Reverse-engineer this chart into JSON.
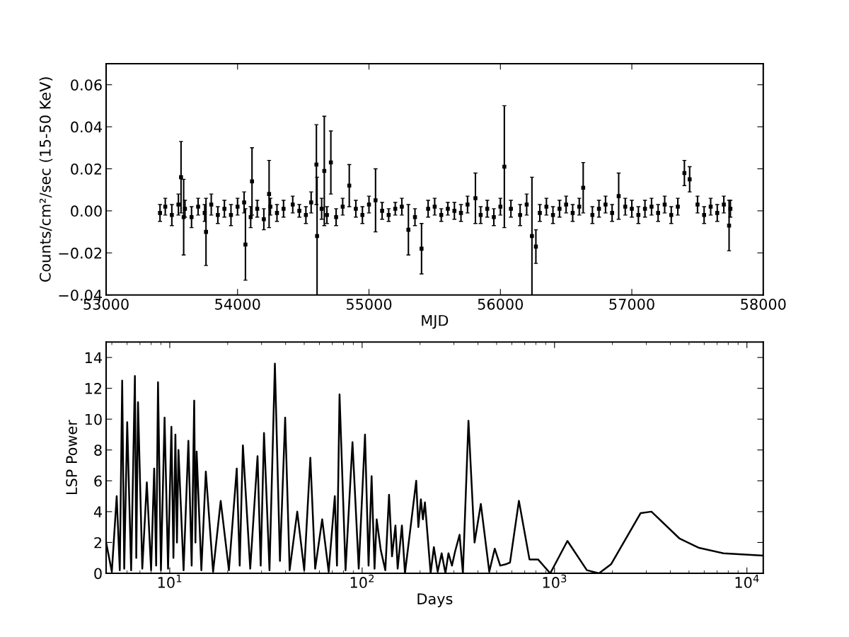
{
  "chart_data": [
    {
      "type": "scatter",
      "xlabel": "MJD",
      "ylabel": "Counts/cm²/sec (15-50 KeV)",
      "color": "#000000",
      "marker": "square",
      "xlim": [
        53000,
        58000
      ],
      "xticks": [
        53000,
        54000,
        55000,
        56000,
        57000,
        58000
      ],
      "ylim": [
        -0.04,
        0.07
      ],
      "yticks": [
        {
          "value": -0.04,
          "label": "−0.04"
        },
        {
          "value": -0.02,
          "label": "−0.02"
        },
        {
          "value": 0,
          "label": "0.00"
        },
        {
          "value": 0.02,
          "label": "0.02"
        },
        {
          "value": 0.04,
          "label": "0.04"
        },
        {
          "value": 0.06,
          "label": "0.06"
        }
      ],
      "x": [
        53410,
        53450,
        53500,
        53550,
        53600,
        53650,
        53700,
        53750,
        53800,
        53850,
        53900,
        53950,
        54000,
        54050,
        54100,
        54150,
        54200,
        54250,
        54300,
        54350,
        54420,
        54470,
        54520,
        54560,
        54640,
        54680,
        54750,
        54800,
        54900,
        54950,
        55000,
        55100,
        55150,
        55200,
        55250,
        55350,
        55450,
        55500,
        55550,
        55600,
        55650,
        55700,
        55750,
        55850,
        55900,
        55950,
        56000,
        56080,
        56150,
        56200,
        56300,
        56350,
        56400,
        56450,
        56500,
        56550,
        56600,
        56700,
        56750,
        56800,
        56850,
        56950,
        57000,
        57050,
        57100,
        57150,
        57200,
        57250,
        57300,
        57350,
        57500,
        57550,
        57600,
        57650,
        57700,
        57750,
        53570,
        53590,
        53760,
        54060,
        54110,
        54240,
        54600,
        54605,
        54660,
        54710,
        54850,
        55050,
        55300,
        55400,
        55810,
        56030,
        56240,
        56270,
        56630,
        56900,
        57400,
        57440,
        57740
      ],
      "values": [
        -0.001,
        0.002,
        -0.002,
        0.003,
        0.001,
        -0.003,
        0.002,
        -0.001,
        0.003,
        -0.002,
        0.001,
        -0.002,
        0.002,
        0.004,
        -0.003,
        0.001,
        -0.004,
        0.002,
        -0.001,
        0.001,
        0.003,
        0,
        -0.002,
        0.004,
        0.001,
        -0.002,
        -0.003,
        0.002,
        0.001,
        -0.002,
        0.003,
        0,
        -0.002,
        0.001,
        0.002,
        -0.003,
        0.001,
        0.002,
        -0.002,
        0.001,
        0,
        -0.001,
        0.003,
        -0.002,
        0.001,
        -0.003,
        0.002,
        0.001,
        -0.002,
        0.003,
        -0.001,
        0.002,
        -0.002,
        0.001,
        0.003,
        -0.001,
        0.002,
        -0.002,
        0.001,
        0.003,
        -0.001,
        0.002,
        0.001,
        -0.002,
        0.001,
        0.002,
        -0.001,
        0.003,
        -0.002,
        0.002,
        0.003,
        -0.002,
        0.002,
        -0.001,
        0.003,
        0.001,
        0.016,
        -0.003,
        -0.01,
        -0.016,
        0.014,
        0.008,
        0.022,
        -0.012,
        0.019,
        0.023,
        0.012,
        0.005,
        -0.009,
        -0.018,
        0.006,
        0.021,
        -0.012,
        -0.017,
        0.011,
        0.007,
        0.018,
        0.015,
        -0.007
      ],
      "errors": [
        0.004,
        0.004,
        0.005,
        0.005,
        0.004,
        0.005,
        0.004,
        0.004,
        0.005,
        0.004,
        0.004,
        0.005,
        0.004,
        0.005,
        0.005,
        0.004,
        0.005,
        0.004,
        0.004,
        0.004,
        0.004,
        0.003,
        0.004,
        0.005,
        0.005,
        0.004,
        0.004,
        0.004,
        0.004,
        0.004,
        0.004,
        0.004,
        0.003,
        0.003,
        0.004,
        0.004,
        0.004,
        0.004,
        0.003,
        0.003,
        0.004,
        0.004,
        0.004,
        0.004,
        0.004,
        0.004,
        0.004,
        0.004,
        0.005,
        0.005,
        0.004,
        0.004,
        0.004,
        0.004,
        0.004,
        0.004,
        0.004,
        0.004,
        0.004,
        0.004,
        0.004,
        0.004,
        0.004,
        0.004,
        0.004,
        0.004,
        0.004,
        0.004,
        0.004,
        0.004,
        0.004,
        0.004,
        0.004,
        0.004,
        0.004,
        0.004,
        0.017,
        0.018,
        0.016,
        0.017,
        0.016,
        0.016,
        0.019,
        0.028,
        0.026,
        0.015,
        0.01,
        0.015,
        0.012,
        0.012,
        0.012,
        0.029,
        0.028,
        0.008,
        0.012,
        0.011,
        0.006,
        0.006,
        0.012
      ]
    },
    {
      "type": "line",
      "xlabel": "Days",
      "ylabel": "LSP Power",
      "color": "#000000",
      "log": "x",
      "xlim": [
        4.67,
        12160
      ],
      "xticks": [
        {
          "value": 10,
          "label": "10$^{1}$"
        },
        {
          "value": 100,
          "label": "10$^{2}$"
        },
        {
          "value": 1000,
          "label": "10$^{3}$"
        },
        {
          "value": 10000,
          "label": "10$^{4}$"
        }
      ],
      "ylim": [
        0,
        15
      ],
      "yticks": [
        0,
        2,
        4,
        6,
        8,
        10,
        12,
        14
      ],
      "x": [
        4.67,
        5.0,
        5.3,
        5.5,
        5.66,
        5.8,
        6.01,
        6.3,
        6.59,
        6.7,
        6.84,
        7.2,
        7.6,
        8.0,
        8.3,
        8.5,
        8.69,
        9.0,
        9.4,
        9.8,
        10.2,
        10.45,
        10.7,
        10.9,
        11.1,
        11.8,
        12.5,
        13.0,
        13.4,
        13.6,
        13.8,
        14.6,
        15.4,
        16.8,
        18.4,
        20.3,
        22.3,
        23.1,
        24.0,
        26.2,
        28.6,
        29.7,
        30.9,
        33.0,
        35.2,
        37.4,
        39.8,
        42,
        46,
        50,
        53.8,
        57,
        62,
        67,
        72.1,
        74,
        76.3,
        82,
        89.1,
        96,
        103.5,
        108,
        112,
        116,
        119,
        125,
        132,
        138,
        143,
        149,
        153,
        161,
        167,
        191,
        196,
        202,
        207,
        212,
        227,
        236,
        247,
        259,
        271,
        281,
        293,
        304,
        321,
        334,
        357,
        384,
        414,
        458,
        489,
        522,
        562,
        587,
        653,
        741,
        821,
        950,
        1167,
        1473,
        1703,
        1971,
        2800,
        3190,
        4470,
        5640,
        7550,
        12100
      ],
      "values": [
        2.0,
        0.1,
        5.0,
        0.2,
        12.5,
        0.3,
        9.8,
        0.2,
        12.8,
        1.0,
        11.1,
        0.3,
        5.9,
        0.2,
        6.8,
        0.5,
        12.4,
        0.2,
        10.1,
        0.3,
        9.5,
        1.0,
        9.0,
        2.0,
        8.0,
        0.2,
        8.6,
        0.5,
        11.2,
        2.0,
        7.9,
        0.2,
        6.6,
        0.1,
        4.7,
        0.2,
        6.8,
        0.5,
        8.3,
        0.3,
        7.6,
        0.5,
        9.1,
        0.2,
        13.6,
        0.8,
        10.1,
        0.2,
        4.0,
        0.2,
        7.5,
        0.3,
        3.5,
        0.1,
        5.0,
        0.5,
        11.6,
        0.2,
        8.5,
        0.3,
        9.0,
        0.5,
        6.3,
        0.3,
        3.5,
        1.5,
        0.2,
        5.1,
        1.1,
        3.1,
        0.3,
        3.1,
        0,
        6.0,
        3.0,
        4.8,
        3.5,
        4.6,
        0,
        1.7,
        0.1,
        1.3,
        0,
        1.3,
        0.5,
        1.4,
        2.5,
        0,
        9.9,
        2.0,
        4.5,
        0.1,
        1.6,
        0.5,
        0.6,
        0.7,
        4.7,
        0.9,
        0.9,
        0,
        2.1,
        0.2,
        0,
        0.6,
        3.9,
        4.0,
        2.25,
        1.65,
        1.3,
        1.15
      ]
    }
  ]
}
